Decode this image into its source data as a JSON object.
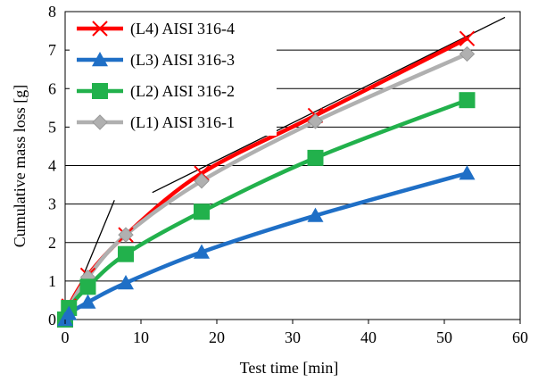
{
  "chart_data": {
    "type": "line",
    "xlabel": "Test time [min]",
    "ylabel": "Cumulative mass loss [g]",
    "xlim": [
      0,
      60
    ],
    "ylim": [
      0,
      8
    ],
    "xticks": [
      0,
      10,
      20,
      30,
      40,
      50,
      60
    ],
    "yticks": [
      0,
      1,
      2,
      3,
      4,
      5,
      6,
      7,
      8
    ],
    "grid": "horizontal",
    "legend_position": "top-left",
    "series": [
      {
        "name": "(L4) AISI 316-4",
        "color": "#ff0000",
        "marker": "x",
        "x": [
          0,
          0.5,
          3,
          8,
          18,
          33,
          53
        ],
        "y": [
          0,
          0.35,
          1.15,
          2.2,
          3.8,
          5.3,
          7.3
        ]
      },
      {
        "name": "(L3) AISI 316-3",
        "color": "#1f6fc6",
        "marker": "triangle",
        "x": [
          0,
          0.5,
          3,
          8,
          18,
          33,
          53
        ],
        "y": [
          0,
          0.15,
          0.45,
          0.95,
          1.75,
          2.7,
          3.8
        ]
      },
      {
        "name": "(L2) AISI 316-2",
        "color": "#22b14c",
        "marker": "square",
        "x": [
          0,
          0.5,
          3,
          8,
          18,
          33,
          53
        ],
        "y": [
          0,
          0.3,
          0.85,
          1.7,
          2.8,
          4.2,
          5.7
        ]
      },
      {
        "name": "(L1) AISI 316-1",
        "color": "#b0b0b0",
        "marker": "diamond",
        "x": [
          0,
          0.5,
          3,
          8,
          18,
          33,
          53
        ],
        "y": [
          0,
          0.3,
          1.1,
          2.2,
          3.6,
          5.15,
          6.9
        ]
      }
    ],
    "reference_lines": [
      {
        "x": [
          0,
          6.5
        ],
        "y": [
          0,
          3.1
        ],
        "color": "#000000"
      },
      {
        "x": [
          11.5,
          58
        ],
        "y": [
          3.3,
          7.85
        ],
        "color": "#000000"
      }
    ]
  }
}
